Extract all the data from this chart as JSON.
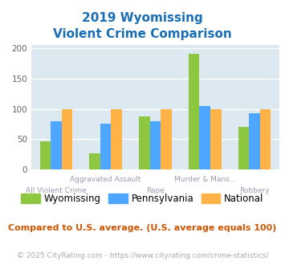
{
  "title_line1": "2019 Wyomissing",
  "title_line2": "Violent Crime Comparison",
  "categories": [
    "All Violent Crime",
    "Aggravated Assault",
    "Rape",
    "Murder & Mans...",
    "Robbery"
  ],
  "cat_top_row": [
    "",
    "Aggravated Assault",
    "",
    "Murder & Mans...",
    ""
  ],
  "cat_bot_row": [
    "All Violent Crime",
    "",
    "Rape",
    "",
    "Robbery"
  ],
  "series": {
    "Wyomissing": [
      47,
      27,
      88,
      190,
      70
    ],
    "Pennsylvania": [
      80,
      76,
      79,
      105,
      93
    ],
    "National": [
      100,
      100,
      100,
      100,
      100
    ]
  },
  "colors": {
    "Wyomissing": "#8dc63f",
    "Pennsylvania": "#4da6ff",
    "National": "#ffb347"
  },
  "ylim": [
    0,
    205
  ],
  "yticks": [
    0,
    50,
    100,
    150,
    200
  ],
  "title_color": "#1a6eb5",
  "plot_bg": "#dce9f0",
  "label_color": "#a09ab0",
  "subtitle_text": "Compared to U.S. average. (U.S. average equals 100)",
  "subtitle_color": "#cc5500",
  "footer_text": "© 2025 CityRating.com - https://www.cityrating.com/crime-statistics/",
  "footer_color": "#aaaaaa",
  "bar_width": 0.22
}
